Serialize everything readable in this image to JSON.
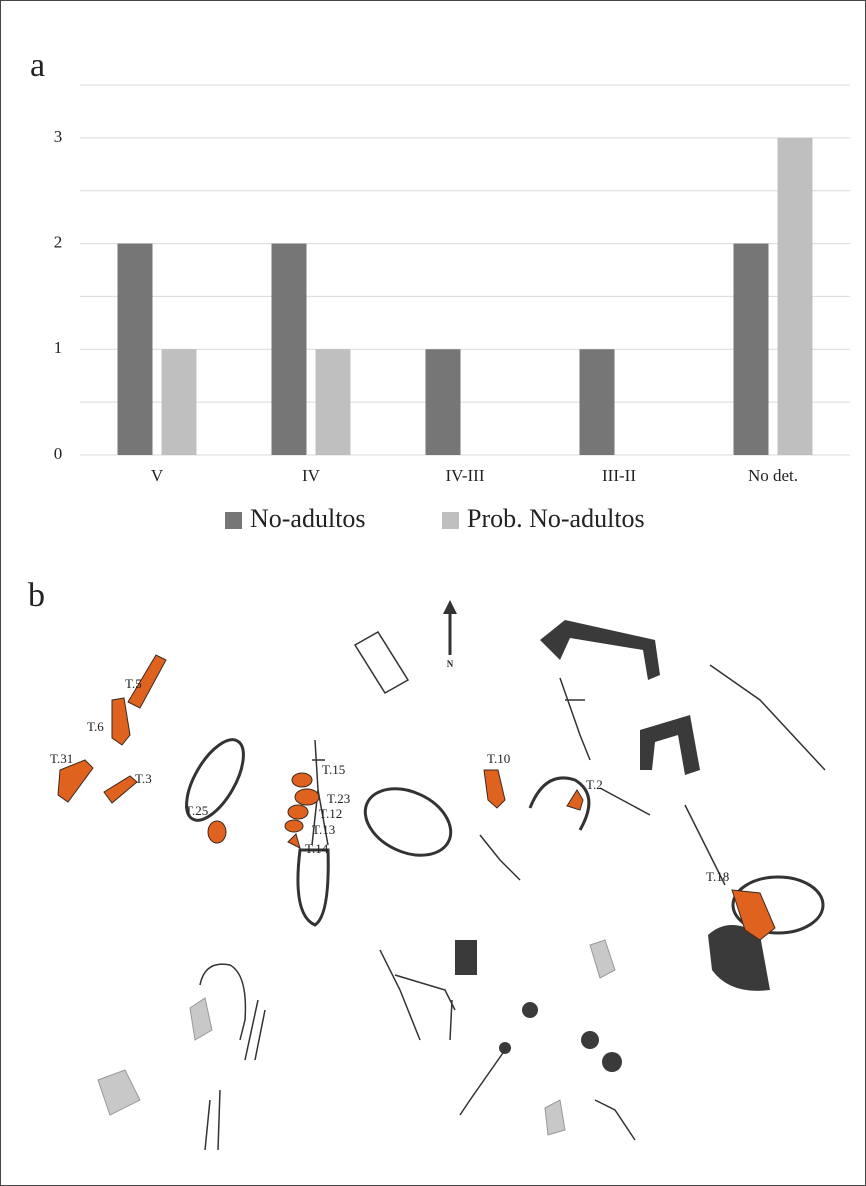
{
  "panels": [
    "a",
    "b"
  ],
  "chart_data": {
    "type": "bar",
    "categories": [
      "V",
      "IV",
      "IV-III",
      "III-II",
      "No det."
    ],
    "series": [
      {
        "name": "No-adultos",
        "color": "#767676",
        "values": [
          2,
          2,
          1,
          1,
          2
        ]
      },
      {
        "name": "Prob. No-adultos",
        "color": "#bfbfbf",
        "values": [
          1,
          1,
          0,
          0,
          3
        ]
      }
    ],
    "ylim": [
      0,
      3.5
    ],
    "yticks": [
      0,
      1,
      2,
      3
    ],
    "minor_gridlines": [
      0.5,
      1.5,
      2.5,
      3.5
    ],
    "grid": true
  },
  "map": {
    "north": "N",
    "labels": [
      "T.5",
      "T.6",
      "T.31",
      "T.3",
      "T.25",
      "T.15",
      "T.23",
      "T.12",
      "T.13",
      "T.14",
      "T.10",
      "T.2",
      "T.18"
    ]
  }
}
